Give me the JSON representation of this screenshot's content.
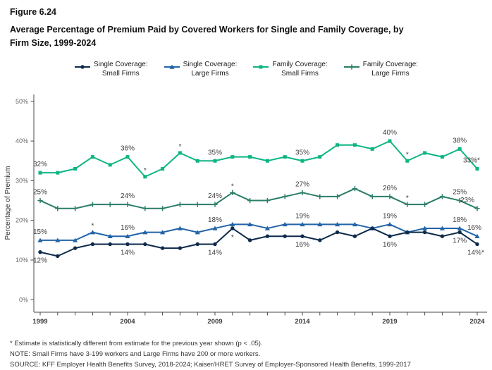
{
  "figure_label": "Figure 6.24",
  "title_line1": "Average Percentage of Premium Paid by Covered Workers for Single and Family Coverage, by",
  "title_line2": "Firm Size, 1999-2024",
  "legend": [
    {
      "id": "single-coverage-small-firms",
      "marker": "circle",
      "color": "#0e2a4a",
      "line1": "Single Coverage:",
      "line2": "Small Firms"
    },
    {
      "id": "single-coverage-large-firms",
      "marker": "triangle",
      "color": "#2264a8",
      "line1": "Single Coverage:",
      "line2": "Large Firms"
    },
    {
      "id": "family-coverage-small-firms",
      "marker": "square",
      "color": "#0cb583",
      "line1": "Family Coverage:",
      "line2": "Small Firms"
    },
    {
      "id": "family-coverage-large-firms",
      "marker": "plus",
      "color": "#2a7d68",
      "line1": "Family Coverage:",
      "line2": "Large Firms"
    }
  ],
  "chart_data": {
    "type": "line",
    "title": "Average Percentage of Premium Paid by Covered Workers for Single and Family Coverage, by Firm Size, 1999-2024",
    "xlabel": "",
    "ylabel": "Percentage of Premium",
    "ylim": [
      0,
      50
    ],
    "y_tick_labels": [
      "0%",
      "10%",
      "20%",
      "30%",
      "40%",
      "50%"
    ],
    "x_tick_years": [
      1999,
      2004,
      2009,
      2014,
      2019,
      2024
    ],
    "grid": false,
    "legend_position": "top",
    "x": [
      1999,
      2000,
      2001,
      2002,
      2003,
      2004,
      2005,
      2006,
      2007,
      2008,
      2009,
      2010,
      2011,
      2012,
      2013,
      2014,
      2015,
      2016,
      2017,
      2018,
      2019,
      2020,
      2021,
      2022,
      2023,
      2024
    ],
    "series": [
      {
        "id": "family-coverage-small-firms",
        "name": "Family Coverage: Small Firms",
        "color": "#0cb583",
        "marker": "square",
        "label_side": "above",
        "values": [
          32,
          32,
          33,
          36,
          34,
          36,
          31,
          33,
          37,
          35,
          35,
          36,
          36,
          35,
          36,
          35,
          36,
          39,
          39,
          38,
          40,
          35,
          37,
          36,
          38,
          33
        ],
        "point_labels": [
          {
            "year": 1999,
            "text": "32%"
          },
          {
            "year": 2004,
            "text": "36%"
          },
          {
            "year": 2009,
            "text": "35%"
          },
          {
            "year": 2014,
            "text": "35%"
          },
          {
            "year": 2019,
            "text": "40%"
          },
          {
            "year": 2023,
            "text": "38%"
          },
          {
            "year": 2024,
            "text": "33%*",
            "dx": -8
          }
        ],
        "asterisk_years": [
          2005,
          2007,
          2020
        ]
      },
      {
        "id": "family-coverage-large-firms",
        "name": "Family Coverage: Large Firms",
        "color": "#2a7d68",
        "marker": "plus",
        "label_side": "above",
        "values": [
          25,
          23,
          23,
          24,
          24,
          24,
          23,
          23,
          24,
          24,
          24,
          27,
          25,
          25,
          26,
          27,
          26,
          26,
          28,
          26,
          26,
          24,
          24,
          26,
          25,
          23
        ],
        "point_labels": [
          {
            "year": 1999,
            "text": "25%"
          },
          {
            "year": 2004,
            "text": "24%"
          },
          {
            "year": 2009,
            "text": "24%"
          },
          {
            "year": 2014,
            "text": "27%"
          },
          {
            "year": 2019,
            "text": "26%"
          },
          {
            "year": 2023,
            "text": "25%"
          },
          {
            "year": 2024,
            "text": "23%",
            "dx": -14
          }
        ],
        "asterisk_years": [
          2010,
          2020
        ]
      },
      {
        "id": "single-coverage-large-firms",
        "name": "Single Coverage: Large Firms",
        "color": "#2264a8",
        "marker": "triangle",
        "label_side": "above",
        "values": [
          15,
          15,
          15,
          17,
          16,
          16,
          17,
          17,
          18,
          17,
          18,
          19,
          19,
          18,
          19,
          19,
          19,
          19,
          19,
          18,
          19,
          17,
          18,
          18,
          18,
          16
        ],
        "point_labels": [
          {
            "year": 1999,
            "text": "15%"
          },
          {
            "year": 2004,
            "text": "16%"
          },
          {
            "year": 2009,
            "text": "18%"
          },
          {
            "year": 2014,
            "text": "19%"
          },
          {
            "year": 2019,
            "text": "19%"
          },
          {
            "year": 2023,
            "text": "18%"
          },
          {
            "year": 2024,
            "text": "16%",
            "dx": -4
          }
        ],
        "asterisk_years": [
          2002
        ]
      },
      {
        "id": "single-coverage-small-firms",
        "name": "Single Coverage: Small Firms",
        "color": "#0e2a4a",
        "marker": "circle",
        "label_side": "below",
        "values": [
          12,
          11,
          13,
          14,
          14,
          14,
          14,
          13,
          13,
          14,
          14,
          18,
          15,
          16,
          16,
          16,
          15,
          17,
          16,
          18,
          16,
          17,
          17,
          16,
          17,
          14
        ],
        "point_labels": [
          {
            "year": 1999,
            "text": "12%"
          },
          {
            "year": 2004,
            "text": "14%"
          },
          {
            "year": 2009,
            "text": "14%"
          },
          {
            "year": 2014,
            "text": "16%"
          },
          {
            "year": 2019,
            "text": "16%"
          },
          {
            "year": 2023,
            "text": "17%"
          },
          {
            "year": 2024,
            "text": "14%*",
            "dx": -2
          }
        ],
        "asterisk_years": [
          2010
        ]
      }
    ]
  },
  "footnotes": [
    "* Estimate is statistically different from estimate for the previous year shown (p < .05).",
    "NOTE: Small Firms have 3-199 workers and Large Firms have 200 or more workers.",
    "SOURCE: KFF Employer Health Benefits Survey, 2018-2024; Kaiser/HRET Survey of Employer-Sponsored Health Benefits, 1999-2017"
  ]
}
